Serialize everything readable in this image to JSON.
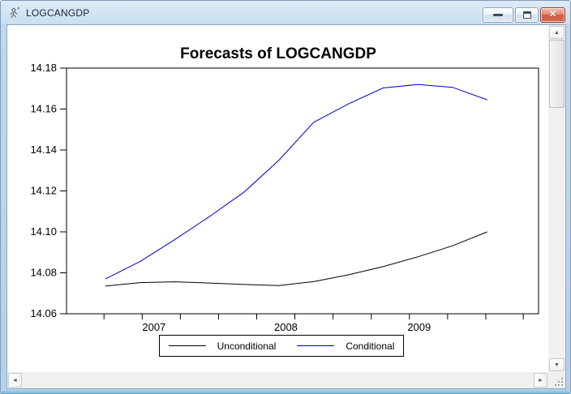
{
  "window": {
    "title": "LOGCANGDP",
    "controls": {
      "minimize": "minimize-window",
      "restore": "restore-window",
      "close": "close-window"
    }
  },
  "icons": {
    "close": "x",
    "scroll_up": "▲",
    "scroll_down": "▼",
    "scroll_left": "◄",
    "scroll_right": "►"
  },
  "colors": {
    "unconditional_line": "#000000",
    "conditional_line": "#0000cc",
    "close_button_red": "#d25a44",
    "titlebar_blue": "#cbdff1"
  },
  "chart_data": {
    "type": "line",
    "title": "Forecasts of LOGCANGDP",
    "xlabel": "",
    "ylabel": "",
    "x": [
      2006.5,
      2006.75,
      2007.0,
      2007.25,
      2007.5,
      2007.75,
      2008.0,
      2008.25,
      2008.5,
      2008.75,
      2009.0,
      2009.25
    ],
    "x_unit": "quarterly (2006Q3 - 2009Q2)",
    "series": [
      {
        "name": "Unconditional",
        "color": "#000000",
        "values": [
          14.0735,
          14.0752,
          14.0756,
          14.075,
          14.0743,
          14.0738,
          14.0757,
          14.079,
          14.083,
          14.0878,
          14.0932,
          14.1
        ]
      },
      {
        "name": "Conditional",
        "color": "#0000cc",
        "values": [
          14.077,
          14.0855,
          14.0962,
          14.1075,
          14.1195,
          14.135,
          14.1535,
          14.1625,
          14.1703,
          14.172,
          14.1706,
          14.1645
        ]
      }
    ],
    "xlim": [
      2006.22,
      2009.62
    ],
    "ylim": [
      14.06,
      14.18
    ],
    "y_ticks": [
      "14.06",
      "14.08",
      "14.10",
      "14.12",
      "14.14",
      "14.16",
      "14.18"
    ],
    "x_minor_ticks": [
      2006.49,
      2006.765,
      2007.04,
      2007.315,
      2007.59,
      2007.865,
      2008.14,
      2008.415,
      2008.69,
      2008.965,
      2009.24,
      2009.51
    ],
    "x_labels": [
      {
        "text": "2007",
        "x": 2006.85
      },
      {
        "text": "2008",
        "x": 2007.8
      },
      {
        "text": "2009",
        "x": 2008.76
      }
    ],
    "grid": false,
    "legend_position": "bottom-center-boxed"
  }
}
